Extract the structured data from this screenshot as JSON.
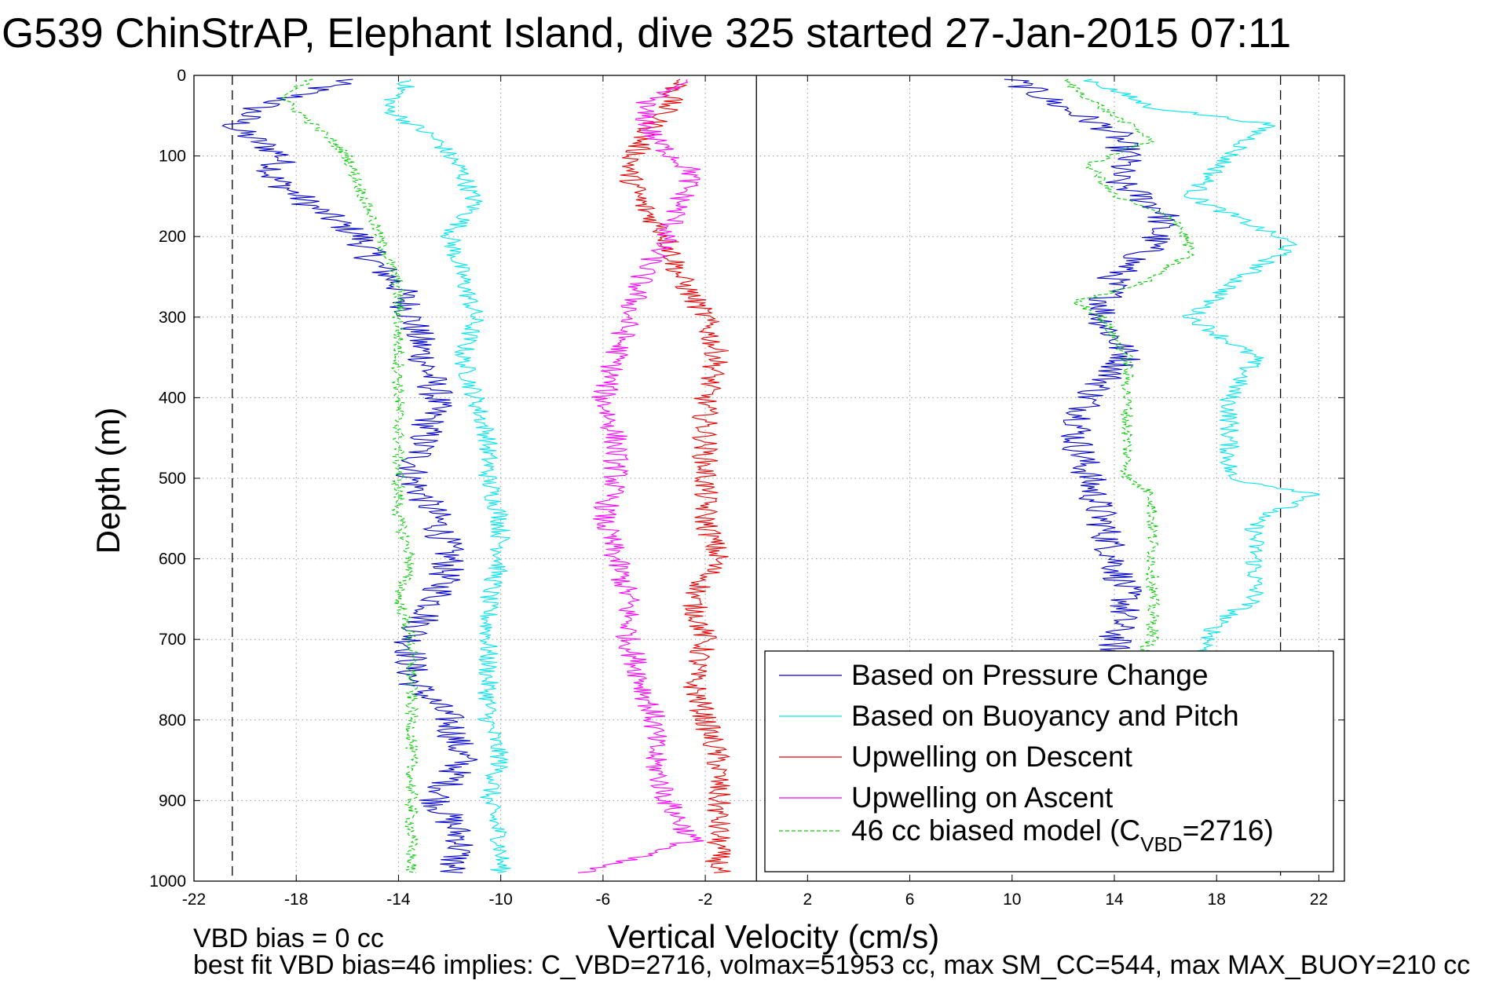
{
  "chart_data": {
    "type": "line",
    "title": "G539 ChinStrAP, Elephant Island, dive 325 started 27-Jan-2015 07:11",
    "xlabel": "Vertical Velocity (cm/s)",
    "ylabel": "Depth (m)",
    "xlim": [
      -22,
      23
    ],
    "ylim": [
      1000,
      0
    ],
    "y_reversed": true,
    "xticks": [
      "-22",
      "-18",
      "-14",
      "-10",
      "-6",
      "-2",
      "2",
      "6",
      "10",
      "14",
      "18",
      "22"
    ],
    "yticks": [
      "0",
      "100",
      "200",
      "300",
      "400",
      "500",
      "600",
      "700",
      "800",
      "900",
      "1000"
    ],
    "grid": true,
    "legend_position": "lower-right",
    "reference_lines": [
      {
        "x": -20.5,
        "style": "dashed",
        "color": "#000000"
      },
      {
        "x": 0,
        "style": "solid",
        "color": "#000000"
      },
      {
        "x": 20.5,
        "style": "dashed",
        "color": "#000000"
      }
    ],
    "series": [
      {
        "name": "Based on Pressure Change",
        "color": "#0000cc",
        "style": "solid",
        "noise": 0.7,
        "descent": {
          "depth": [
            5,
            40,
            65,
            100,
            125,
            160,
            200,
            230,
            260,
            300,
            350,
            400,
            450,
            500,
            550,
            600,
            650,
            700,
            750,
            800,
            850,
            900,
            950,
            990
          ],
          "velocity": [
            -16,
            -19.5,
            -20.5,
            -18.5,
            -19,
            -17.5,
            -15.5,
            -15,
            -14,
            -13.5,
            -13,
            -12.5,
            -13,
            -13.5,
            -12.5,
            -12,
            -12.5,
            -13.5,
            -13.5,
            -12,
            -11.5,
            -12.5,
            -11.5,
            -12
          ]
        },
        "ascent": {
          "depth": [
            5,
            40,
            70,
            100,
            130,
            170,
            210,
            250,
            300,
            350,
            400,
            450,
            500,
            550,
            600,
            650,
            700,
            720
          ],
          "velocity": [
            10,
            12,
            14,
            14.5,
            14,
            16,
            15.5,
            14,
            13.5,
            14.5,
            13,
            12.5,
            13,
            13.5,
            14,
            14.5,
            14,
            14
          ]
        }
      },
      {
        "name": "Based on Buoyancy and Pitch",
        "color": "#00e5ee",
        "style": "solid",
        "noise": 0.4,
        "descent": {
          "depth": [
            5,
            40,
            80,
            120,
            160,
            200,
            250,
            300,
            350,
            400,
            450,
            500,
            550,
            600,
            650,
            700,
            750,
            800,
            850,
            900,
            950,
            990
          ],
          "velocity": [
            -13.5,
            -14.5,
            -12.5,
            -11.5,
            -11,
            -12,
            -11.5,
            -11,
            -11.5,
            -11,
            -10.5,
            -10.5,
            -10,
            -10,
            -10.5,
            -10.5,
            -10.5,
            -10.5,
            -10,
            -10.5,
            -10,
            -10
          ]
        },
        "ascent": {
          "depth": [
            5,
            40,
            60,
            100,
            150,
            180,
            210,
            250,
            300,
            350,
            400,
            450,
            500,
            520,
            550,
            600,
            650,
            680,
            720
          ],
          "velocity": [
            13,
            15.5,
            20,
            18.5,
            17,
            19,
            21,
            19,
            17,
            19.5,
            18.5,
            18.5,
            18.5,
            22,
            19.5,
            19.5,
            19.5,
            18,
            17.5
          ]
        }
      },
      {
        "name": "Upwelling on Descent",
        "color": "#e60000",
        "style": "solid",
        "noise": 0.5,
        "descent": {
          "depth": [
            5,
            40,
            80,
            120,
            160,
            200,
            250,
            300,
            350,
            400,
            450,
            500,
            550,
            600,
            650,
            700,
            750,
            800,
            850,
            900,
            950,
            990
          ],
          "velocity": [
            -3,
            -3.5,
            -4.5,
            -5,
            -4.5,
            -3.5,
            -3,
            -2,
            -1.5,
            -2,
            -2,
            -2,
            -2,
            -1.5,
            -2.5,
            -2,
            -2.5,
            -2,
            -1.5,
            -1.5,
            -1.5,
            -1.5
          ]
        },
        "ascent": null
      },
      {
        "name": "Upwelling on Ascent",
        "color": "#ff00ff",
        "style": "solid",
        "noise": 0.5,
        "descent": {
          "depth": [
            5,
            40,
            80,
            120,
            160,
            200,
            250,
            300,
            350,
            400,
            450,
            500,
            550,
            600,
            650,
            700,
            750,
            800,
            850,
            900,
            950,
            990
          ],
          "velocity": [
            -3,
            -4.5,
            -4,
            -2.5,
            -3,
            -3.5,
            -4.5,
            -5,
            -5.5,
            -6,
            -5.5,
            -5.5,
            -6,
            -5.5,
            -5,
            -5,
            -4.5,
            -4,
            -4,
            -3.5,
            -2.5,
            -7
          ]
        },
        "ascent": null
      },
      {
        "name": "46 cc biased model (CVBD=2716)",
        "legend_label": "46 cc biased model (C",
        "legend_subscript": "VBD",
        "legend_suffix": "=2716)",
        "color": "#00cc00",
        "style": "dashed",
        "noise": 0.25,
        "descent": {
          "depth": [
            5,
            30,
            70,
            100,
            140,
            180,
            220,
            260,
            300,
            350,
            400,
            450,
            500,
            550,
            600,
            650,
            700,
            750,
            800,
            850,
            900,
            950,
            990
          ],
          "velocity": [
            -17.5,
            -18.5,
            -17,
            -16,
            -15.5,
            -15,
            -14.5,
            -14,
            -14,
            -14,
            -14,
            -14,
            -14,
            -14,
            -13.5,
            -14,
            -13.5,
            -13.5,
            -13.5,
            -13.5,
            -13.5,
            -13.5,
            -13.5
          ]
        },
        "ascent": {
          "depth": [
            5,
            40,
            80,
            110,
            150,
            180,
            220,
            260,
            280,
            300,
            350,
            400,
            450,
            500,
            520,
            550,
            600,
            650,
            700,
            720
          ],
          "velocity": [
            12,
            13.5,
            15.5,
            13,
            14,
            16.5,
            17,
            15,
            12.5,
            13.5,
            14.5,
            14.5,
            14.5,
            14.5,
            15.5,
            15.5,
            15.5,
            15.5,
            15.5,
            15
          ]
        }
      }
    ]
  },
  "footer": {
    "line1": "VBD bias = 0 cc",
    "line2": "best fit VBD bias=46 implies: C_VBD=2716, volmax=51953 cc, max SM_CC=544, max MAX_BUOY=210 cc"
  }
}
